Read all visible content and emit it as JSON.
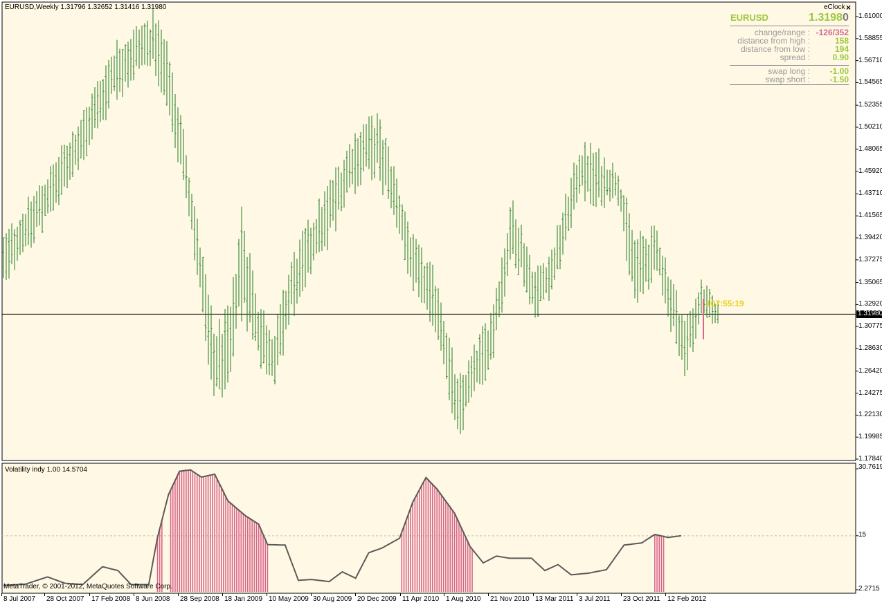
{
  "main_chart": {
    "header": "EURUSD,Weekly  1.31796 1.32652 1.31416 1.31980",
    "current_price_label": "1.31980",
    "timer": "107:55:19",
    "y_ticks": [
      "1.61000",
      "1.58855",
      "1.56710",
      "1.54565",
      "1.52355",
      "1.50210",
      "1.48065",
      "1.45920",
      "1.43710",
      "1.41565",
      "1.39420",
      "1.37275",
      "1.35065",
      "1.32920",
      "1.30775",
      "1.28630",
      "1.26420",
      "1.24275",
      "1.22130",
      "1.19985",
      "1.17840"
    ],
    "colors": {
      "background": "#fff8e4",
      "bars": "#1e7a1e",
      "current_bar": "#d8668a",
      "timer": "#e6d21e"
    }
  },
  "eclock": {
    "title": "eClock",
    "close_icon": "close-icon",
    "symbol": "EURUSD",
    "price_main": "1.3198",
    "price_last_digit": "0",
    "rows": [
      {
        "key": "change/range :",
        "val_a": "-126",
        "sep": "/",
        "val_b": "352"
      },
      {
        "key": "distance from high :",
        "val": "158"
      },
      {
        "key": "distance from low :",
        "val": "194"
      },
      {
        "key": "spread :",
        "val": "0.90"
      },
      {
        "key": "swap long :",
        "val": "-1.00"
      },
      {
        "key": "swap short :",
        "val": "-1.50"
      }
    ],
    "colors": {
      "symbol": "#9ac83c",
      "negative": "#d06a8e",
      "positive": "#9ac83c",
      "key": "#9a9a9a"
    }
  },
  "indicator": {
    "header": "Volatility indy 1.00 14.5704",
    "y_ticks": [
      "30.7619",
      "15",
      "2.2715"
    ],
    "copyright": "MetaTrader, © 2001-2012, MetaQuotes Software Corp.",
    "colors": {
      "line": "#5a5a5a",
      "hist": "#d8668a",
      "level": "#c8bfae"
    }
  },
  "x_labels": [
    "8 Jul 2007",
    "28 Oct 2007",
    "17 Feb 2008",
    "8 Jun 2008",
    "28 Sep 2008",
    "18 Jan 2009",
    "10 May 2009",
    "30 Aug 2009",
    "20 Dec 2009",
    "11 Apr 2010",
    "1 Aug 2010",
    "21 Nov 2010",
    "13 Mar 2011",
    "3 Jul 2011",
    "23 Oct 2011",
    "12 Feb 2012"
  ],
  "chart_data": [
    {
      "type": "ohlc",
      "title": "EURUSD,Weekly",
      "ylim": [
        1.1784,
        1.61
      ],
      "last_bar": {
        "open": 1.31796,
        "high": 1.32652,
        "low": 1.31416,
        "close": 1.3198
      },
      "weeks": 245,
      "x_first": "8 Jul 2007",
      "high_low_trend": [
        [
          0,
          1.352,
          1.392
        ],
        [
          15,
          1.41,
          1.45
        ],
        [
          30,
          1.48,
          1.52
        ],
        [
          40,
          1.53,
          1.58
        ],
        [
          50,
          1.56,
          1.6
        ],
        [
          55,
          1.56,
          1.61
        ],
        [
          60,
          1.52,
          1.57
        ],
        [
          66,
          1.43,
          1.48
        ],
        [
          72,
          1.32,
          1.37
        ],
        [
          76,
          1.24,
          1.3
        ],
        [
          82,
          1.26,
          1.32
        ],
        [
          86,
          1.33,
          1.42
        ],
        [
          92,
          1.28,
          1.33
        ],
        [
          98,
          1.25,
          1.3
        ],
        [
          104,
          1.32,
          1.37
        ],
        [
          115,
          1.38,
          1.43
        ],
        [
          128,
          1.45,
          1.5
        ],
        [
          135,
          1.46,
          1.51
        ],
        [
          140,
          1.42,
          1.47
        ],
        [
          148,
          1.35,
          1.39
        ],
        [
          157,
          1.3,
          1.35
        ],
        [
          164,
          1.2,
          1.25
        ],
        [
          168,
          1.23,
          1.27
        ],
        [
          176,
          1.27,
          1.32
        ],
        [
          184,
          1.38,
          1.43
        ],
        [
          192,
          1.32,
          1.36
        ],
        [
          198,
          1.34,
          1.38
        ],
        [
          208,
          1.44,
          1.48
        ],
        [
          212,
          1.43,
          1.48
        ],
        [
          222,
          1.43,
          1.46
        ],
        [
          228,
          1.33,
          1.39
        ],
        [
          236,
          1.36,
          1.4
        ],
        [
          246,
          1.26,
          1.31
        ],
        [
          252,
          1.32,
          1.35
        ],
        [
          258,
          1.31,
          1.33
        ]
      ]
    },
    {
      "type": "line+histogram",
      "title": "Volatility indy 1.00 14.5704",
      "ylim": [
        2.2715,
        30.7619
      ],
      "level": 15,
      "volatility_trend": [
        [
          0,
          3.3
        ],
        [
          10,
          3.6
        ],
        [
          20,
          5.3
        ],
        [
          28,
          3.8
        ],
        [
          36,
          3.5
        ],
        [
          45,
          7.7
        ],
        [
          52,
          6.8
        ],
        [
          58,
          3.5
        ],
        [
          66,
          3.5
        ],
        [
          70,
          14.6
        ],
        [
          75,
          24.7
        ],
        [
          80,
          30.2
        ],
        [
          85,
          30.5
        ],
        [
          90,
          28.8
        ],
        [
          96,
          29.5
        ],
        [
          102,
          23.2
        ],
        [
          110,
          19.7
        ],
        [
          116,
          17.7
        ],
        [
          120,
          12.9
        ],
        [
          128,
          12.8
        ],
        [
          134,
          4.5
        ],
        [
          140,
          4.7
        ],
        [
          148,
          4.2
        ],
        [
          154,
          6.5
        ],
        [
          160,
          5.0
        ],
        [
          166,
          11.0
        ],
        [
          172,
          12.1
        ],
        [
          180,
          14.4
        ],
        [
          186,
          22.9
        ],
        [
          192,
          28.7
        ],
        [
          197,
          26.0
        ],
        [
          205,
          20.3
        ],
        [
          212,
          12.5
        ],
        [
          218,
          8.6
        ],
        [
          224,
          10.2
        ],
        [
          230,
          9.7
        ],
        [
          240,
          9.7
        ],
        [
          246,
          6.8
        ],
        [
          252,
          8.2
        ],
        [
          258,
          5.8
        ],
        [
          266,
          6.2
        ],
        [
          274,
          7.0
        ],
        [
          282,
          12.8
        ],
        [
          290,
          13.3
        ],
        [
          296,
          15.3
        ],
        [
          302,
          14.6
        ],
        [
          308,
          15.0
        ]
      ],
      "highlight_ranges": [
        [
          70,
          72
        ],
        [
          76,
          120
        ],
        [
          181,
          213
        ],
        [
          296,
          300
        ]
      ]
    }
  ]
}
